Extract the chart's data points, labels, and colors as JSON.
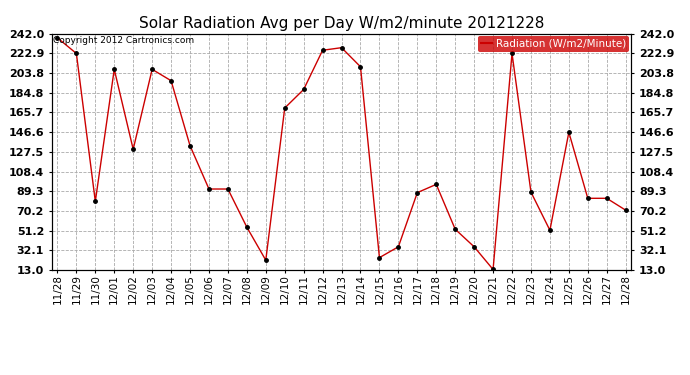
{
  "title": "Solar Radiation Avg per Day W/m2/minute 20121228",
  "copyright": "Copyright 2012 Cartronics.com",
  "legend_label": "Radiation (W/m2/Minute)",
  "dates": [
    "11/28",
    "11/29",
    "11/30",
    "12/01",
    "12/02",
    "12/03",
    "12/04",
    "12/05",
    "12/06",
    "12/07",
    "12/08",
    "12/09",
    "12/10",
    "12/11",
    "12/12",
    "12/13",
    "12/14",
    "12/15",
    "12/16",
    "12/17",
    "12/18",
    "12/19",
    "12/20",
    "12/21",
    "12/22",
    "12/23",
    "12/24",
    "12/25",
    "12/26",
    "12/27",
    "12/28"
  ],
  "values": [
    238.0,
    222.9,
    79.5,
    207.5,
    130.0,
    207.5,
    196.5,
    133.5,
    91.5,
    91.5,
    54.5,
    22.5,
    170.0,
    188.0,
    226.0,
    228.5,
    210.0,
    25.0,
    35.5,
    88.0,
    96.0,
    52.5,
    35.5,
    13.5,
    222.9,
    88.5,
    51.5,
    146.5,
    82.5,
    82.5,
    71.0
  ],
  "ylim": [
    13.0,
    242.0
  ],
  "yticks": [
    13.0,
    32.1,
    51.2,
    70.2,
    89.3,
    108.4,
    127.5,
    146.6,
    165.7,
    184.8,
    203.8,
    222.9,
    242.0
  ],
  "line_color": "#cc0000",
  "marker_color": "#000000",
  "bg_color": "#ffffff",
  "grid_color": "#aaaaaa",
  "legend_bg": "#cc0000",
  "legend_text_color": "#ffffff",
  "title_fontsize": 11,
  "tick_fontsize": 7.5,
  "ytick_fontsize": 8,
  "copyright_fontsize": 6.5,
  "legend_fontsize": 7.5,
  "border_color": "#000000"
}
